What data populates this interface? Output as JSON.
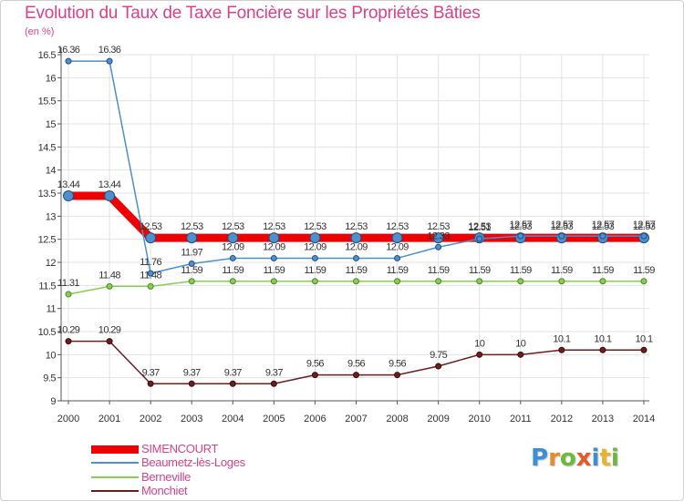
{
  "chart_data": {
    "type": "line",
    "title": "Evolution du Taux de Taxe Foncière sur les Propriétés Bâties",
    "unit_label": "(en %)",
    "xlabel": "",
    "ylabel": "(en %)",
    "ylim": [
      9,
      16.5
    ],
    "y_ticks": [
      "9",
      "9.5",
      "10",
      "10.5",
      "11",
      "11.5",
      "12",
      "12.5",
      "13",
      "13.5",
      "14",
      "14.5",
      "15",
      "15.5",
      "16",
      "16.5"
    ],
    "categories": [
      "2000",
      "2001",
      "2002",
      "2003",
      "2004",
      "2005",
      "2006",
      "2007",
      "2008",
      "2009",
      "2010",
      "2011",
      "2012",
      "2013",
      "2014"
    ],
    "series": [
      {
        "name": "SIMENCOURT",
        "color": "#ee0000",
        "values": [
          13.44,
          13.44,
          12.53,
          12.53,
          12.53,
          12.53,
          12.53,
          12.53,
          12.53,
          12.53,
          12.53,
          12.53,
          12.53,
          12.53,
          12.53
        ],
        "labels": [
          "13.44",
          "13.44",
          "12.53",
          "12.53",
          "12.53",
          "12.53",
          "12.53",
          "12.53",
          "12.53",
          "12.53",
          "12.53",
          "12.53",
          "12.53",
          "12.53",
          "12.53"
        ]
      },
      {
        "name": "Beaumetz-lès-Loges",
        "color": "#4f8fca",
        "values": [
          16.36,
          16.36,
          11.76,
          11.97,
          12.09,
          12.09,
          12.09,
          12.09,
          12.09,
          12.33,
          12.51,
          12.57,
          12.57,
          12.57,
          12.57
        ],
        "labels": [
          "16.36",
          "16.36",
          "11.76",
          "11.97",
          "12.09",
          "12.09",
          "12.09",
          "12.09",
          "12.09",
          "12.33",
          "12.51",
          "12.57",
          "12.57",
          "12.57",
          "12.57"
        ]
      },
      {
        "name": "Berneville",
        "color": "#88cc55",
        "values": [
          11.31,
          11.48,
          11.48,
          11.59,
          11.59,
          11.59,
          11.59,
          11.59,
          11.59,
          11.59,
          11.59,
          11.59,
          11.59,
          11.59,
          11.59
        ],
        "labels": [
          "11.31",
          "11.48",
          "11.48",
          "11.59",
          "11.59",
          "11.59",
          "11.59",
          "11.59",
          "11.59",
          "11.59",
          "11.59",
          "11.59",
          "11.59",
          "11.59",
          "11.59"
        ]
      },
      {
        "name": "Monchiet",
        "color": "#6b1e1e",
        "values": [
          10.29,
          10.29,
          9.37,
          9.37,
          9.37,
          9.37,
          9.56,
          9.56,
          9.56,
          9.75,
          10,
          10,
          10.1,
          10.1,
          10.1
        ],
        "labels": [
          "10.29",
          "10.29",
          "9.37",
          "9.37",
          "9.37",
          "9.37",
          "9.56",
          "9.56",
          "9.56",
          "9.75",
          "10",
          "10",
          "10.1",
          "10.1",
          "10.1"
        ]
      }
    ]
  },
  "brand": {
    "letters": [
      "P",
      "r",
      "o",
      "x",
      "i",
      "t",
      "i"
    ],
    "colors": [
      "#3a8fd6",
      "#e98a2c",
      "#6cba3c",
      "#e55a2a",
      "#3a8fd6",
      "#e9b32c",
      "#6cba3c"
    ]
  }
}
